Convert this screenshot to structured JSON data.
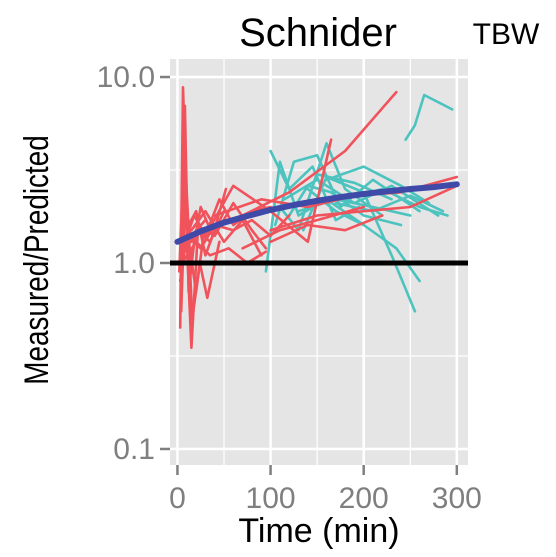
{
  "chart_data": {
    "type": "line",
    "title": "Schnider",
    "facet_label": "TBW",
    "xlabel": "Time (min)",
    "ylabel": "Measured/Predicted",
    "y_scale": "log",
    "xlim": [
      -8,
      312
    ],
    "ylim": [
      0.082,
      12.5
    ],
    "x_ticks": [
      0,
      100,
      200,
      300
    ],
    "x_tick_labels": [
      "0",
      "100",
      "200",
      "300"
    ],
    "y_ticks": [
      0.1,
      1.0,
      10.0
    ],
    "y_tick_labels": [
      "0.1",
      "1.0",
      "10.0"
    ],
    "grid": true,
    "reference_line": {
      "y": 1.0,
      "color": "#000000"
    },
    "colors": {
      "panel": "#e5e5e5",
      "grid": "#ffffff",
      "group_a": "#f0535c",
      "group_b": "#4cc3bf",
      "trend": "#3f4aa8"
    },
    "series": [
      {
        "group": "a",
        "x": [
          3,
          6,
          10,
          15,
          20,
          30
        ],
        "y": [
          0.45,
          8.8,
          1.9,
          1.3,
          1.5,
          1.7
        ]
      },
      {
        "group": "a",
        "x": [
          5,
          8,
          12,
          18,
          25,
          40
        ],
        "y": [
          1.1,
          7.0,
          0.7,
          1.3,
          1.2,
          1.6
        ]
      },
      {
        "group": "a",
        "x": [
          2,
          7,
          11,
          15,
          22,
          35,
          50
        ],
        "y": [
          0.9,
          4.0,
          1.0,
          0.35,
          1.5,
          1.3,
          1.9
        ]
      },
      {
        "group": "a",
        "x": [
          4,
          9,
          13,
          20,
          28
        ],
        "y": [
          0.55,
          3.0,
          1.2,
          0.7,
          1.4
        ]
      },
      {
        "group": "a",
        "x": [
          5,
          10,
          16,
          24,
          32,
          45
        ],
        "y": [
          1.2,
          2.2,
          0.5,
          1.0,
          0.65,
          1.3
        ]
      },
      {
        "group": "a",
        "x": [
          3,
          12,
          20,
          30,
          40
        ],
        "y": [
          0.8,
          1.6,
          1.9,
          1.1,
          1.5
        ]
      },
      {
        "group": "a",
        "x": [
          6,
          14,
          25,
          38,
          52
        ],
        "y": [
          1.5,
          1.0,
          2.0,
          1.4,
          2.5
        ]
      },
      {
        "group": "a",
        "x": [
          8,
          18,
          30,
          45,
          60,
          80,
          100
        ],
        "y": [
          1.3,
          1.8,
          1.4,
          2.2,
          1.6,
          1.9,
          2.0
        ]
      },
      {
        "group": "a",
        "x": [
          10,
          25,
          40,
          60,
          80,
          100,
          120
        ],
        "y": [
          1.4,
          1.2,
          1.6,
          1.5,
          1.7,
          1.4,
          1.8
        ]
      },
      {
        "group": "a",
        "x": [
          5,
          20,
          35,
          55,
          75,
          95
        ],
        "y": [
          1.0,
          1.3,
          1.1,
          1.2,
          1.0,
          1.15
        ]
      },
      {
        "group": "a",
        "x": [
          15,
          30,
          50,
          70,
          90
        ],
        "y": [
          1.5,
          1.9,
          1.3,
          1.7,
          1.1
        ]
      },
      {
        "group": "a",
        "x": [
          20,
          40,
          60,
          80,
          95
        ],
        "y": [
          1.6,
          1.4,
          2.1,
          1.5,
          1.2
        ]
      },
      {
        "group": "a",
        "x": [
          60,
          120,
          180,
          235
        ],
        "y": [
          1.7,
          2.4,
          4.0,
          8.3
        ]
      },
      {
        "group": "a",
        "x": [
          40,
          90,
          140,
          190,
          240,
          300
        ],
        "y": [
          1.8,
          2.2,
          2.0,
          2.3,
          2.4,
          2.9
        ]
      },
      {
        "group": "a",
        "x": [
          100,
          150,
          200,
          250,
          300
        ],
        "y": [
          1.5,
          1.8,
          1.9,
          2.0,
          2.6
        ]
      },
      {
        "group": "a",
        "x": [
          100,
          140,
          180,
          220
        ],
        "y": [
          1.3,
          1.6,
          1.5,
          1.8
        ]
      },
      {
        "group": "a",
        "x": [
          30,
          60,
          100,
          140,
          165
        ],
        "y": [
          1.4,
          2.6,
          1.9,
          1.3,
          4.6
        ]
      },
      {
        "group": "a",
        "x": [
          70,
          110,
          150,
          200
        ],
        "y": [
          1.2,
          1.5,
          1.7,
          2.0
        ]
      },
      {
        "group": "b",
        "x": [
          95,
          110,
          130,
          160,
          200
        ],
        "y": [
          0.9,
          3.5,
          1.8,
          2.2,
          1.6
        ]
      },
      {
        "group": "b",
        "x": [
          100,
          120,
          145,
          170,
          195
        ],
        "y": [
          4.0,
          2.5,
          3.3,
          1.7,
          2.0
        ]
      },
      {
        "group": "b",
        "x": [
          105,
          125,
          150,
          175,
          210,
          260
        ],
        "y": [
          1.6,
          3.5,
          3.8,
          2.0,
          2.8,
          1.9
        ]
      },
      {
        "group": "b",
        "x": [
          110,
          130,
          160,
          180,
          220
        ],
        "y": [
          2.0,
          1.5,
          4.4,
          2.5,
          1.8
        ]
      },
      {
        "group": "b",
        "x": [
          115,
          150,
          190,
          230,
          280
        ],
        "y": [
          2.2,
          2.8,
          2.1,
          2.6,
          1.8
        ]
      },
      {
        "group": "b",
        "x": [
          120,
          140,
          165,
          200,
          240
        ],
        "y": [
          1.8,
          2.6,
          2.4,
          1.8,
          1.6
        ]
      },
      {
        "group": "b",
        "x": [
          130,
          170,
          210,
          250
        ],
        "y": [
          1.9,
          2.2,
          2.0,
          1.8
        ]
      },
      {
        "group": "b",
        "x": [
          135,
          160,
          200,
          230,
          255
        ],
        "y": [
          1.5,
          2.9,
          2.4,
          1.1,
          0.55
        ]
      },
      {
        "group": "b",
        "x": [
          140,
          170,
          200,
          235,
          260
        ],
        "y": [
          2.5,
          1.9,
          1.6,
          1.2,
          0.8
        ]
      },
      {
        "group": "b",
        "x": [
          150,
          190,
          230
        ],
        "y": [
          3.0,
          2.7,
          2.2
        ]
      },
      {
        "group": "b",
        "x": [
          160,
          200,
          240,
          270
        ],
        "y": [
          2.8,
          3.3,
          2.6,
          2.1
        ]
      },
      {
        "group": "b",
        "x": [
          170,
          210,
          250,
          285
        ],
        "y": [
          2.1,
          1.9,
          2.3,
          1.9
        ]
      },
      {
        "group": "b",
        "x": [
          180,
          220,
          260,
          290
        ],
        "y": [
          2.2,
          2.5,
          2.0,
          1.8
        ]
      },
      {
        "group": "b",
        "x": [
          245,
          255,
          265,
          295
        ],
        "y": [
          4.6,
          5.5,
          8.0,
          6.7
        ]
      }
    ],
    "trend": {
      "x": [
        0,
        25,
        50,
        75,
        100,
        125,
        150,
        175,
        200,
        225,
        250,
        275,
        300
      ],
      "y": [
        1.3,
        1.48,
        1.65,
        1.79,
        1.93,
        2.05,
        2.16,
        2.26,
        2.35,
        2.43,
        2.5,
        2.56,
        2.65
      ]
    }
  }
}
